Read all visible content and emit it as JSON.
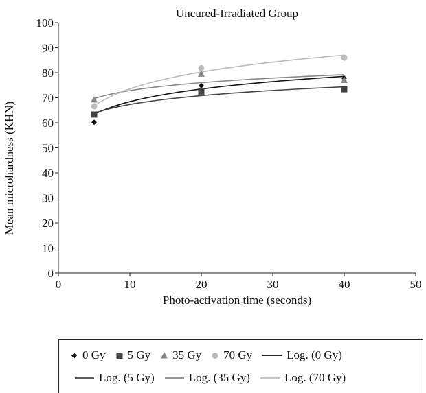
{
  "chart_data": {
    "type": "scatter",
    "title": "Uncured-Irradiated Group",
    "xlabel": "Photo-activation time (seconds)",
    "ylabel": "Mean microhardness (KHN)",
    "xlim": [
      0,
      50
    ],
    "ylim": [
      0,
      100
    ],
    "xticks": [
      "0",
      "10",
      "20",
      "30",
      "40",
      "50"
    ],
    "yticks": [
      "0",
      "10",
      "20",
      "30",
      "40",
      "50",
      "60",
      "70",
      "80",
      "90",
      "100"
    ],
    "x": [
      5,
      20,
      40
    ],
    "grid": false,
    "legend_position": "bottom",
    "series": [
      {
        "name": "0 Gy",
        "marker": "diamond",
        "color": "#111111",
        "values": [
          60.2,
          74.8,
          77.8
        ]
      },
      {
        "name": "5 Gy",
        "marker": "square",
        "color": "#444444",
        "values": [
          63.3,
          72.5,
          73.4
        ]
      },
      {
        "name": "35 Gy",
        "marker": "triangle",
        "color": "#888888",
        "values": [
          69.2,
          79.5,
          77.0
        ]
      },
      {
        "name": "70 Gy",
        "marker": "circle",
        "color": "#bbbbbb",
        "values": [
          66.6,
          81.8,
          86.0
        ]
      }
    ],
    "trendlines": [
      {
        "name": "Log. (0 Gy)",
        "type": "logarithmic",
        "color": "#111111",
        "values": [
          63.6,
          72.8,
          79.0
        ]
      },
      {
        "name": "Log. (5 Gy)",
        "type": "logarithmic",
        "color": "#444444",
        "values": [
          63.9,
          70.5,
          74.6
        ]
      },
      {
        "name": "Log. (35 Gy)",
        "type": "logarithmic",
        "color": "#888888",
        "values": [
          69.7,
          76.0,
          79.2
        ]
      },
      {
        "name": "Log. (70 Gy)",
        "type": "logarithmic",
        "color": "#bbbbbb",
        "values": [
          66.8,
          80.3,
          87.0
        ]
      }
    ]
  }
}
